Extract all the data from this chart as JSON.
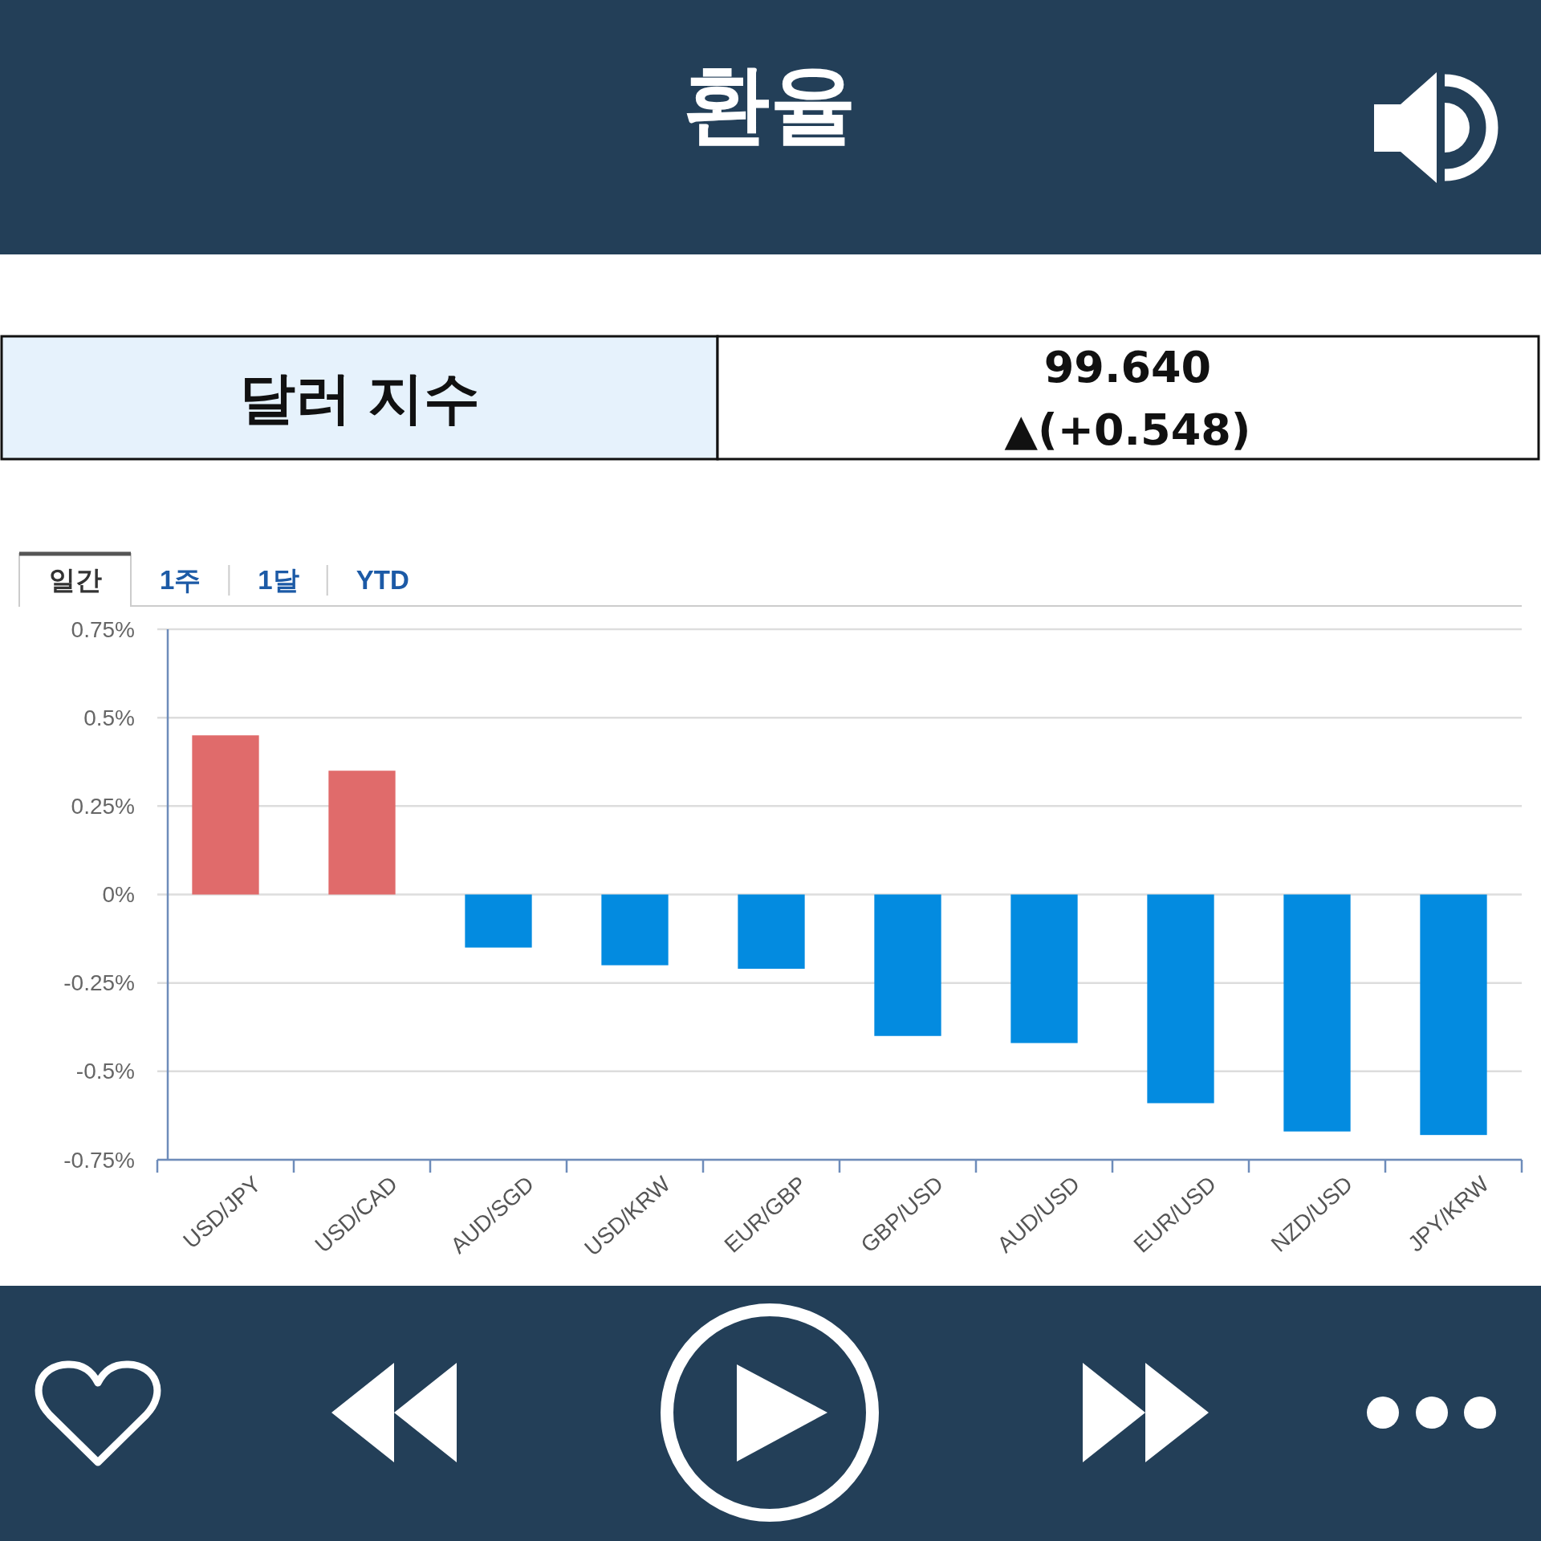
{
  "chart_data": [
    {
      "type": "other",
      "title": "환율",
      "annotations": [
        "달러 지수",
        "99.640",
        "▲(+0.548)"
      ]
    },
    {
      "type": "bar",
      "annotations": [
        "일간",
        "1주",
        "1달",
        "YTD"
      ],
      "categories": [
        "USD/JPY",
        "USD/CAD",
        "AUD/SGD",
        "USD/KRW",
        "EUR/GBP",
        "GBP/USD",
        "AUD/USD",
        "EUR/USD",
        "NZD/USD",
        "JPY/KRW"
      ],
      "values": [
        0.45,
        0.35,
        -0.15,
        -0.2,
        -0.21,
        -0.4,
        -0.42,
        -0.59,
        -0.67,
        -0.68
      ],
      "colors": [
        "#e06b6b",
        "#e06b6b",
        "#038be0",
        "#038be0",
        "#038be0",
        "#038be0",
        "#038be0",
        "#038be0",
        "#038be0",
        "#038be0"
      ],
      "ylim": [
        -0.75,
        0.75
      ],
      "yticks": [
        {
          "value": -0.75,
          "label": "-0.75%"
        },
        {
          "value": -0.5,
          "label": "-0.5%"
        },
        {
          "value": -0.25,
          "label": "-0.25%"
        },
        {
          "value": 0,
          "label": "0%"
        },
        {
          "value": 0.25,
          "label": "0.25%"
        },
        {
          "value": 0.5,
          "label": "0.5%"
        },
        {
          "value": 0.75,
          "label": "0.75%"
        }
      ],
      "grid": "y"
    }
  ]
}
